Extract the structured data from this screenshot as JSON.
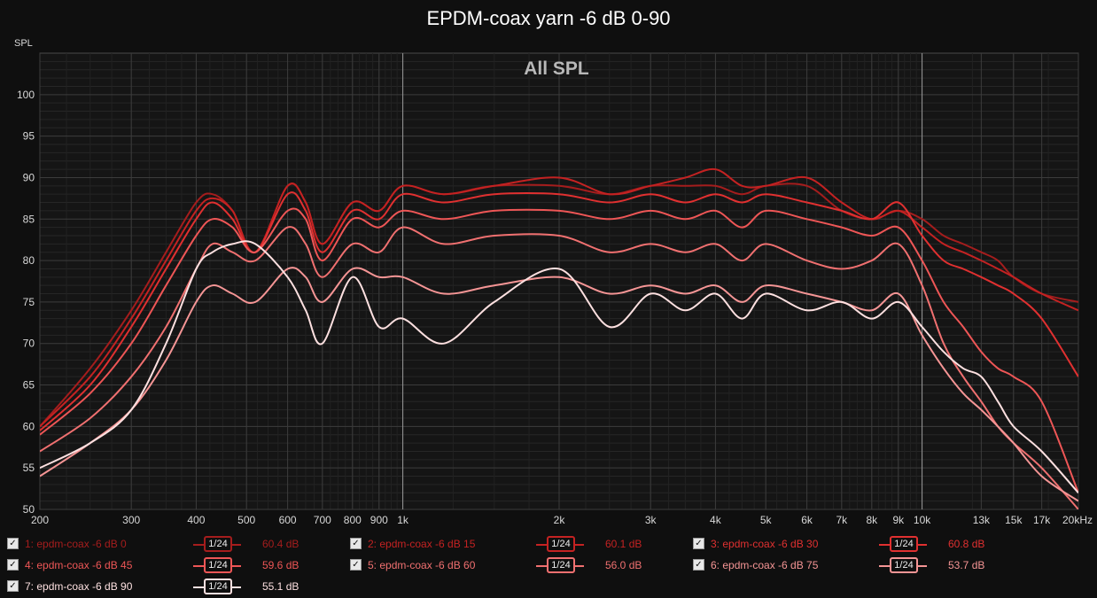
{
  "chart_title": "EPDM-coax yarn -6 dB 0-90",
  "chart_data": {
    "type": "line",
    "title": "EPDM-coax yarn -6 dB 0-90",
    "subtitle": "All SPL",
    "ylabel": "SPL",
    "xlabel": "",
    "xscale": "log",
    "xlim": [
      200,
      20000
    ],
    "ylim": [
      50,
      105
    ],
    "grid": true,
    "x_ticks": [
      200,
      300,
      400,
      500,
      600,
      700,
      800,
      900,
      1000,
      2000,
      3000,
      4000,
      5000,
      6000,
      7000,
      8000,
      9000,
      10000,
      13000,
      15000,
      17000,
      20000
    ],
    "x_tick_labels": [
      "200",
      "300",
      "400",
      "500",
      "600",
      "700",
      "800",
      "900",
      "1k",
      "2k",
      "3k",
      "4k",
      "5k",
      "6k",
      "7k",
      "8k",
      "9k",
      "10k",
      "13k",
      "15k",
      "17k",
      "20kHz"
    ],
    "y_ticks": [
      50,
      55,
      60,
      65,
      70,
      75,
      80,
      85,
      90,
      95,
      100
    ],
    "y_tick_labels": [
      "50",
      "55",
      "60",
      "65",
      "70",
      "75",
      "80",
      "85",
      "90",
      "95",
      "100"
    ],
    "x": [
      200,
      250,
      300,
      350,
      400,
      430,
      470,
      520,
      600,
      650,
      700,
      800,
      900,
      1000,
      1200,
      1500,
      2000,
      2500,
      3000,
      3500,
      4000,
      4500,
      5000,
      6000,
      7000,
      8000,
      9000,
      10000,
      11000,
      12000,
      13000,
      14000,
      15000,
      17000,
      20000
    ],
    "series": [
      {
        "name": "1: epdm-coax -6 dB 0",
        "color": "#a51d1d",
        "level": "60.4 dB",
        "smoothing": "1/24",
        "values": [
          60,
          67,
          74,
          81,
          87,
          88,
          86,
          81,
          89,
          87,
          82,
          87,
          86,
          89,
          88,
          89,
          89,
          88,
          89,
          89,
          89,
          88,
          89,
          89,
          86,
          85,
          86,
          85,
          83,
          82,
          81,
          80,
          78,
          76,
          75
        ]
      },
      {
        "name": "2: epdm-coax -6 dB 15",
        "color": "#c42222",
        "level": "60.1 dB",
        "smoothing": "1/24",
        "values": [
          60,
          66,
          73,
          80,
          86,
          87.5,
          86,
          81,
          89,
          87,
          82,
          87,
          86,
          89,
          88,
          89,
          90,
          88,
          89,
          90,
          91,
          89,
          89,
          90,
          87,
          85,
          86,
          84,
          82,
          81,
          80,
          79,
          78,
          76,
          74
        ]
      },
      {
        "name": "3: epdm-coax -6 dB 30",
        "color": "#e03030",
        "level": "60.8 dB",
        "smoothing": "1/24",
        "values": [
          59.5,
          65,
          72,
          79,
          85,
          87,
          85,
          81,
          88,
          86,
          81,
          86,
          85,
          88,
          87,
          88,
          88,
          87,
          88,
          87,
          88,
          87,
          88,
          87,
          86,
          85,
          87,
          83,
          80,
          79,
          78,
          77,
          76,
          73,
          66
        ]
      },
      {
        "name": "4: epdm-coax -6 dB 45",
        "color": "#ee5656",
        "level": "59.6 dB",
        "smoothing": "1/24",
        "values": [
          59,
          64,
          70,
          77,
          83,
          85,
          84,
          81,
          86,
          85,
          80,
          85,
          84,
          86,
          85,
          86,
          86,
          85,
          86,
          85,
          86,
          84,
          86,
          85,
          84,
          83,
          84,
          80,
          75,
          72,
          69,
          67,
          66,
          63,
          52
        ]
      },
      {
        "name": "5: epdm-coax -6 dB 60",
        "color": "#f07070",
        "level": "56.0 dB",
        "smoothing": "1/24",
        "values": [
          57,
          61,
          66,
          72,
          79,
          82,
          81,
          80,
          84,
          82,
          78,
          82,
          81,
          84,
          82,
          83,
          83,
          81,
          82,
          81,
          82,
          80,
          82,
          80,
          79,
          80,
          82,
          77,
          70,
          66,
          63,
          60,
          58,
          55,
          50
        ]
      },
      {
        "name": "6: epdm-coax -6 dB 75",
        "color": "#f59595",
        "level": "53.7 dB",
        "smoothing": "1/24",
        "values": [
          54,
          58,
          62,
          68,
          75,
          77,
          76,
          75,
          79,
          78,
          75,
          79,
          78,
          78,
          76,
          77,
          78,
          76,
          77,
          76,
          77,
          75,
          77,
          76,
          75,
          74,
          76,
          71,
          67,
          64,
          62,
          60,
          58,
          54,
          51
        ]
      },
      {
        "name": "7: epdm-coax -6 dB 90",
        "color": "#fde0e0",
        "level": "55.1 dB",
        "smoothing": "1/24",
        "values": [
          55,
          58,
          62,
          70,
          79,
          81,
          82,
          82,
          78,
          74,
          70,
          78,
          72,
          73,
          70,
          75,
          79,
          72,
          76,
          74,
          76,
          73,
          76,
          74,
          75,
          73,
          75,
          72,
          69,
          67,
          66,
          63,
          60,
          57,
          52
        ]
      }
    ]
  }
}
